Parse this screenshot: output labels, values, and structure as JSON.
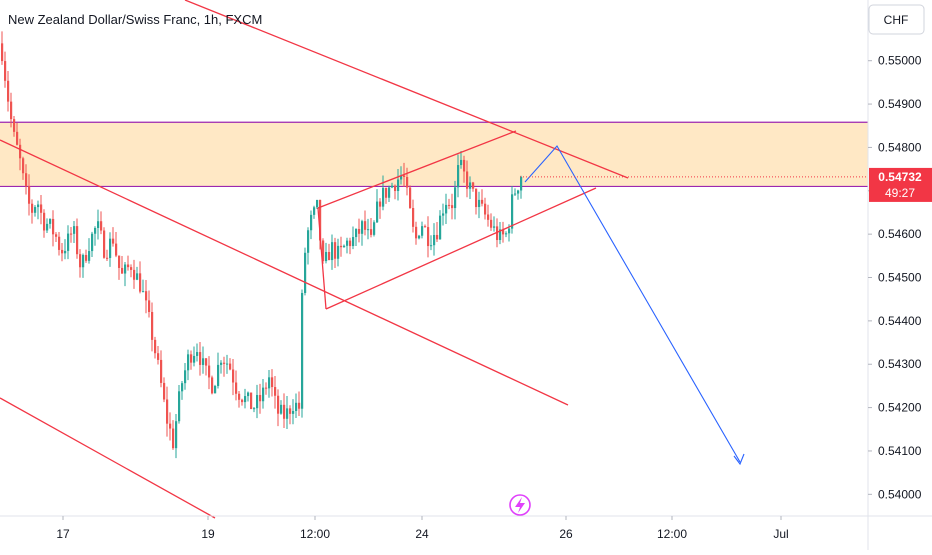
{
  "header": {
    "title": "New Zealand Dollar/Swiss Franc, 1h, FXCM"
  },
  "currency_button": {
    "label": "CHF"
  },
  "price_badge": {
    "value": "0.54732",
    "countdown": "49:27"
  },
  "colors": {
    "up": "#26a69a",
    "down": "#ef5350",
    "trendline": "#f23645",
    "zone_fill": "#ffe0b2",
    "zone_border": "#9c27b0",
    "projection": "#2962ff",
    "badge": "#f23645",
    "axis_text": "#131722"
  },
  "chart_data": {
    "type": "candlestick",
    "title": "New Zealand Dollar/Swiss Franc, 1h, FXCM",
    "ylim": [
      0.5395,
      0.5514
    ],
    "x_ticks": [
      "17",
      "19",
      "12:00",
      "24",
      "26",
      "12:00",
      "Jul"
    ],
    "y_ticks": [
      "0.55000",
      "0.54900",
      "0.54800",
      "0.54700",
      "0.54600",
      "0.54500",
      "0.54400",
      "0.54300",
      "0.54200",
      "0.54100",
      "0.54000"
    ],
    "last_price": 0.54732,
    "resistance_zone": {
      "top": 0.54858,
      "bottom": 0.5471
    },
    "price_path": [
      [
        0,
        0.5504
      ],
      [
        6,
        0.5493
      ],
      [
        12,
        0.5483
      ],
      [
        18,
        0.5478
      ],
      [
        24,
        0.547
      ],
      [
        30,
        0.5465
      ],
      [
        36,
        0.5468
      ],
      [
        42,
        0.5463
      ],
      [
        48,
        0.5462
      ],
      [
        54,
        0.546
      ],
      [
        60,
        0.5456
      ],
      [
        66,
        0.5458
      ],
      [
        72,
        0.5461
      ],
      [
        80,
        0.5452
      ],
      [
        88,
        0.5458
      ],
      [
        96,
        0.5462
      ],
      [
        104,
        0.5456
      ],
      [
        112,
        0.5459
      ],
      [
        120,
        0.545
      ],
      [
        130,
        0.5453
      ],
      [
        140,
        0.5448
      ],
      [
        150,
        0.5438
      ],
      [
        158,
        0.5428
      ],
      [
        165,
        0.5418
      ],
      [
        172,
        0.5412
      ],
      [
        180,
        0.5425
      ],
      [
        188,
        0.5432
      ],
      [
        196,
        0.5434
      ],
      [
        204,
        0.5428
      ],
      [
        212,
        0.5425
      ],
      [
        220,
        0.5432
      ],
      [
        228,
        0.543
      ],
      [
        236,
        0.5424
      ],
      [
        244,
        0.5422
      ],
      [
        252,
        0.542
      ],
      [
        260,
        0.5422
      ],
      [
        268,
        0.5427
      ],
      [
        276,
        0.5419
      ],
      [
        284,
        0.5418
      ],
      [
        292,
        0.5421
      ],
      [
        298,
        0.542
      ],
      [
        302,
        0.5453
      ],
      [
        308,
        0.5462
      ],
      [
        316,
        0.5466
      ],
      [
        322,
        0.5452
      ],
      [
        330,
        0.5457
      ],
      [
        338,
        0.5455
      ],
      [
        346,
        0.5458
      ],
      [
        354,
        0.5459
      ],
      [
        362,
        0.5462
      ],
      [
        370,
        0.5458
      ],
      [
        378,
        0.5468
      ],
      [
        386,
        0.547
      ],
      [
        394,
        0.5472
      ],
      [
        402,
        0.5474
      ],
      [
        408,
        0.5466
      ],
      [
        414,
        0.5458
      ],
      [
        420,
        0.5463
      ],
      [
        428,
        0.5459
      ],
      [
        436,
        0.5461
      ],
      [
        444,
        0.5468
      ],
      [
        452,
        0.5467
      ],
      [
        458,
        0.5476
      ],
      [
        466,
        0.5472
      ],
      [
        474,
        0.5468
      ],
      [
        482,
        0.5465
      ],
      [
        490,
        0.5462
      ],
      [
        498,
        0.5459
      ],
      [
        506,
        0.546
      ],
      [
        512,
        0.5469
      ],
      [
        520,
        0.54732
      ]
    ]
  }
}
